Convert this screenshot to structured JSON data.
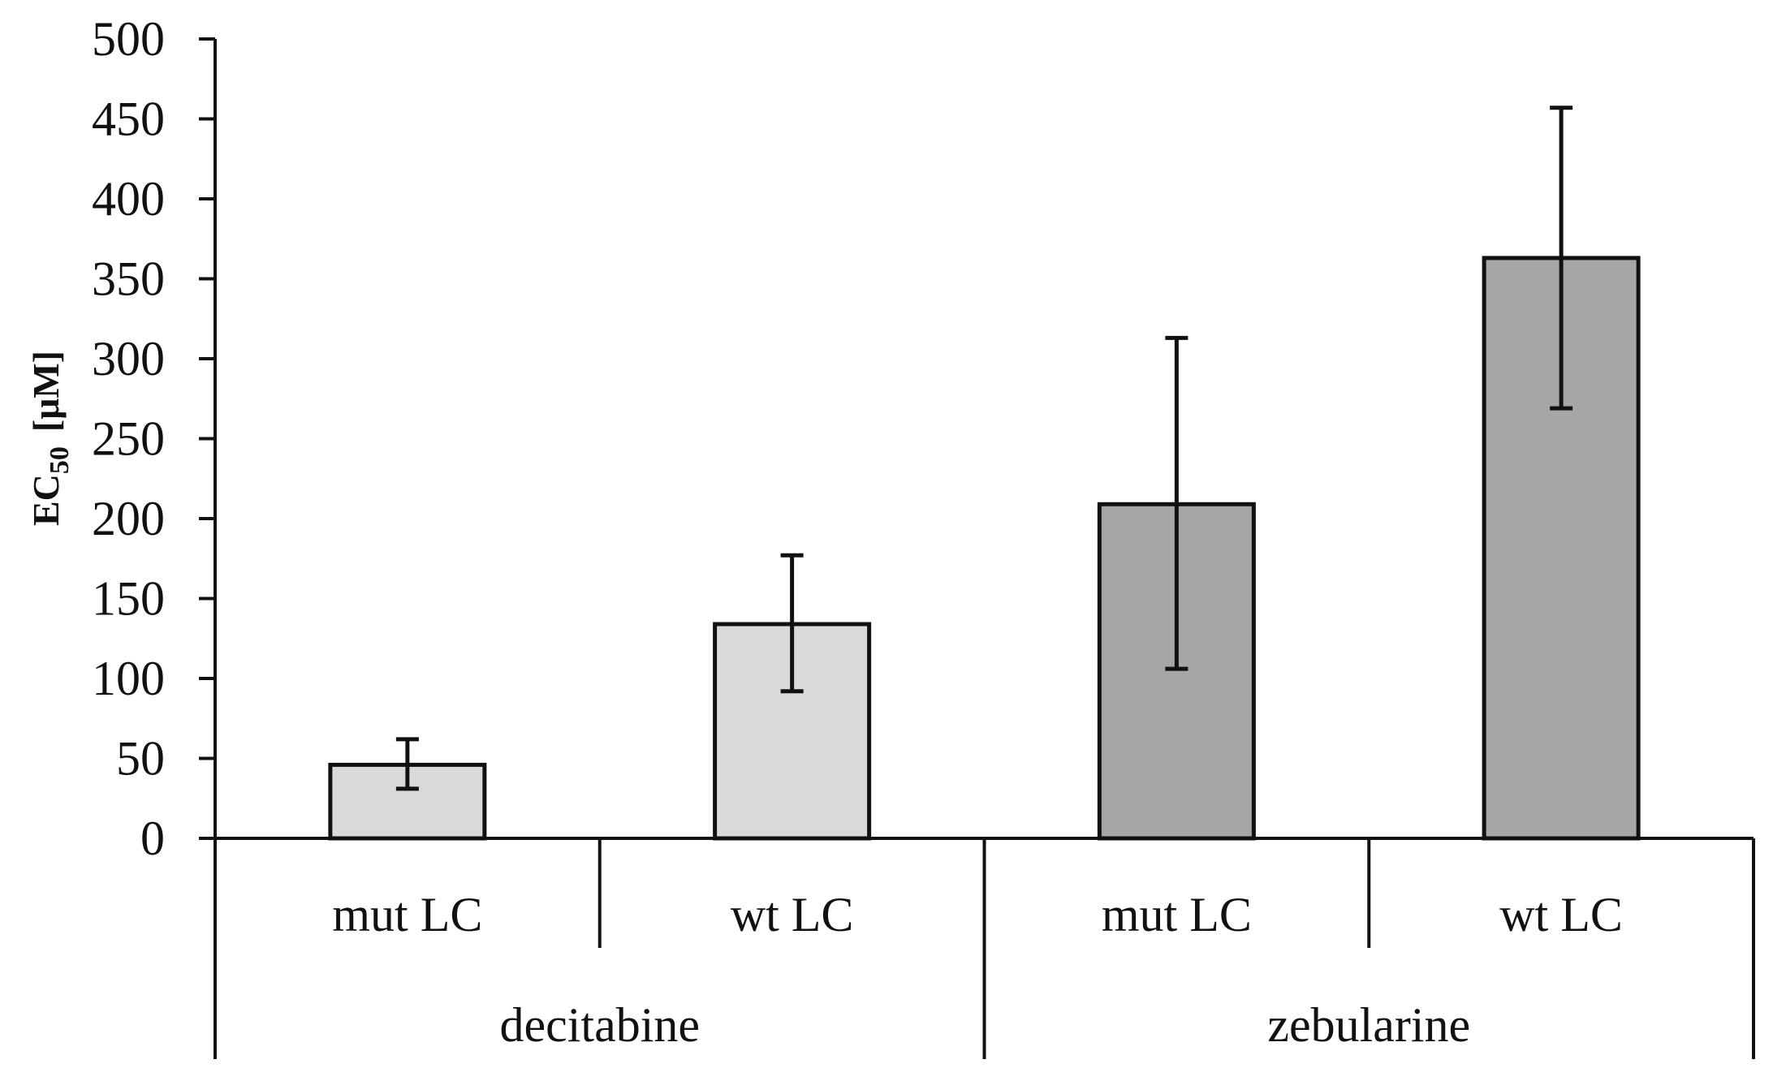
{
  "chart_data": {
    "type": "bar",
    "title": "",
    "xlabel": "",
    "ylabel": "EC50 [μM]",
    "ylabel_main": "EC",
    "ylabel_sub": "50",
    "ylabel_unit": "[μM]",
    "ylim": [
      0,
      500
    ],
    "yticks": [
      "0",
      "50",
      "100",
      "150",
      "200",
      "250",
      "300",
      "350",
      "400",
      "450",
      "500"
    ],
    "grid": false,
    "categories": [
      "mut LC",
      "wt LC",
      "mut LC",
      "wt LC"
    ],
    "groups": [
      {
        "name": "decitabine",
        "size": 2
      },
      {
        "name": "zebularine",
        "size": 2
      }
    ],
    "values": [
      46,
      134,
      209,
      363
    ],
    "error_high": [
      62,
      177,
      313,
      457
    ],
    "error_low": [
      31,
      92,
      106,
      269
    ],
    "colors": [
      "#d9d9d9",
      "#d9d9d9",
      "#a6a6a6",
      "#a6a6a6"
    ],
    "edge_color": "#111111"
  }
}
